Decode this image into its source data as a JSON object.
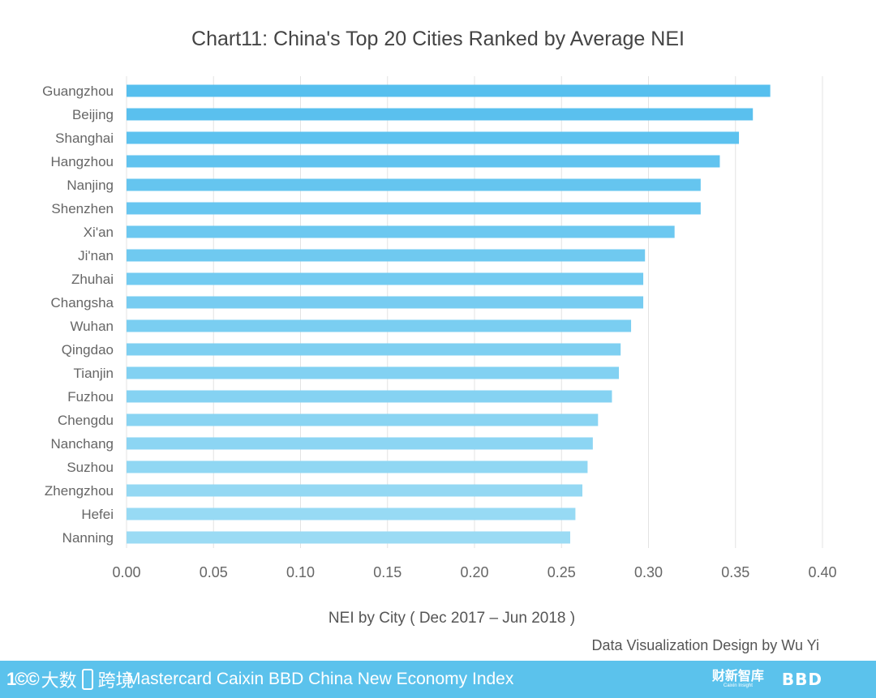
{
  "chart_data": {
    "type": "bar",
    "orientation": "horizontal",
    "title": "Chart11:  China's Top 20 Cities Ranked by Average NEI",
    "xlabel": "NEI by City ( Dec 2017 – Jun 2018 )",
    "ylabel": "",
    "xlim": [
      0,
      0.4
    ],
    "ticks": [
      "0.00",
      "0.05",
      "0.10",
      "0.15",
      "0.20",
      "0.25",
      "0.30",
      "0.35",
      "0.40"
    ],
    "tick_values": [
      0,
      0.05,
      0.1,
      0.15,
      0.2,
      0.25,
      0.3,
      0.35,
      0.4
    ],
    "grid": true,
    "categories": [
      "Guangzhou",
      "Beijing",
      "Shanghai",
      "Hangzhou",
      "Nanjing",
      "Shenzhen",
      "Xi'an",
      "Ji'nan",
      "Zhuhai",
      "Changsha",
      "Wuhan",
      "Qingdao",
      "Tianjin",
      "Fuzhou",
      "Chengdu",
      "Nanchang",
      "Suzhou",
      "Zhengzhou",
      "Hefei",
      "Nanning"
    ],
    "values": [
      0.37,
      0.36,
      0.352,
      0.341,
      0.33,
      0.33,
      0.315,
      0.298,
      0.297,
      0.297,
      0.29,
      0.284,
      0.283,
      0.279,
      0.271,
      0.268,
      0.265,
      0.262,
      0.258,
      0.255
    ],
    "colors": {
      "bar_start": "#56bfee",
      "bar_end": "#9bdbf4",
      "grid": "#e3e3e3",
      "tick_text": "#666666"
    }
  },
  "credit": "Data Visualization Design by Wu Yi",
  "footer": {
    "brand_mark": "1©©",
    "brand_text_1": "大数",
    "brand_text_2": "跨境",
    "title": "Mastercard Caixin BBD China New Economy Index",
    "caixin_logo": "财新智库",
    "caixin_sub": "Caixin Insight",
    "bbd_logo": "BBD",
    "bg_color": "#5bc2ec"
  }
}
